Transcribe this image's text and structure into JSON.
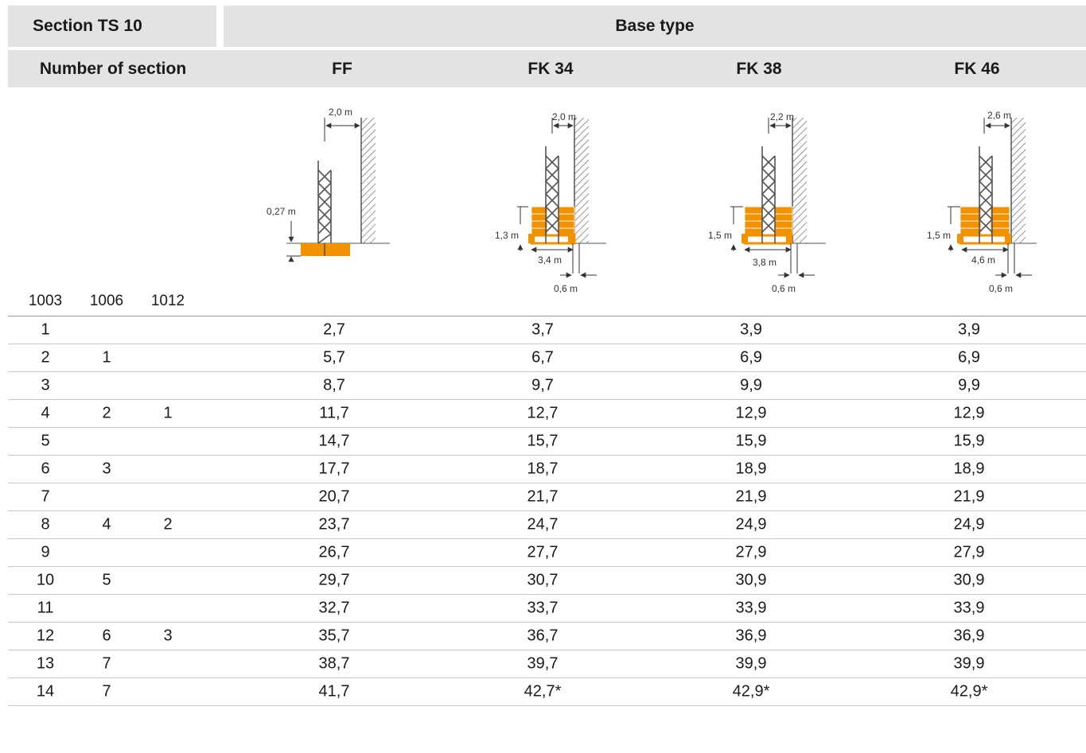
{
  "header": {
    "section_label": "Section TS 10",
    "base_type_label": "Base type",
    "number_label": "Number of section",
    "base_types": [
      "FF",
      "FK 34",
      "FK 38",
      "FK 46"
    ]
  },
  "section_codes": [
    "1003",
    "1006",
    "1012"
  ],
  "diagrams": {
    "ff": {
      "top": "2,0 m",
      "depth": "0,27 m"
    },
    "fk34": {
      "top": "2,0 m",
      "height": "1,3 m",
      "width": "3,4 m",
      "bottom": "0,6 m"
    },
    "fk38": {
      "top": "2,2 m",
      "height": "1,5 m",
      "width": "3,8 m",
      "bottom": "0,6 m"
    },
    "fk46": {
      "top": "2,6 m",
      "height": "1,5 m",
      "width": "4,6 m",
      "bottom": "0,6 m"
    }
  },
  "colors": {
    "header_bg": "#e3e3e3",
    "ballast": "#f39200",
    "steel": "#555555"
  },
  "rows": [
    {
      "c1003": "1",
      "c1006": "",
      "c1012": "",
      "ff": "2,7",
      "fk34": "3,7",
      "fk38": "3,9",
      "fk46": "3,9"
    },
    {
      "c1003": "2",
      "c1006": "1",
      "c1012": "",
      "ff": "5,7",
      "fk34": "6,7",
      "fk38": "6,9",
      "fk46": "6,9"
    },
    {
      "c1003": "3",
      "c1006": "",
      "c1012": "",
      "ff": "8,7",
      "fk34": "9,7",
      "fk38": "9,9",
      "fk46": "9,9"
    },
    {
      "c1003": "4",
      "c1006": "2",
      "c1012": "1",
      "ff": "11,7",
      "fk34": "12,7",
      "fk38": "12,9",
      "fk46": "12,9"
    },
    {
      "c1003": "5",
      "c1006": "",
      "c1012": "",
      "ff": "14,7",
      "fk34": "15,7",
      "fk38": "15,9",
      "fk46": "15,9"
    },
    {
      "c1003": "6",
      "c1006": "3",
      "c1012": "",
      "ff": "17,7",
      "fk34": "18,7",
      "fk38": "18,9",
      "fk46": "18,9"
    },
    {
      "c1003": "7",
      "c1006": "",
      "c1012": "",
      "ff": "20,7",
      "fk34": "21,7",
      "fk38": "21,9",
      "fk46": "21,9"
    },
    {
      "c1003": "8",
      "c1006": "4",
      "c1012": "2",
      "ff": "23,7",
      "fk34": "24,7",
      "fk38": "24,9",
      "fk46": "24,9"
    },
    {
      "c1003": "9",
      "c1006": "",
      "c1012": "",
      "ff": "26,7",
      "fk34": "27,7",
      "fk38": "27,9",
      "fk46": "27,9"
    },
    {
      "c1003": "10",
      "c1006": "5",
      "c1012": "",
      "ff": "29,7",
      "fk34": "30,7",
      "fk38": "30,9",
      "fk46": "30,9"
    },
    {
      "c1003": "11",
      "c1006": "",
      "c1012": "",
      "ff": "32,7",
      "fk34": "33,7",
      "fk38": "33,9",
      "fk46": "33,9"
    },
    {
      "c1003": "12",
      "c1006": "6",
      "c1012": "3",
      "ff": "35,7",
      "fk34": "36,7",
      "fk38": "36,9",
      "fk46": "36,9"
    },
    {
      "c1003": "13",
      "c1006": "7",
      "c1012": "",
      "ff": "38,7",
      "fk34": "39,7",
      "fk38": "39,9",
      "fk46": "39,9"
    },
    {
      "c1003": "14",
      "c1006": "7",
      "c1012": "",
      "ff": "41,7",
      "fk34": "42,7*",
      "fk38": "42,9*",
      "fk46": "42,9*"
    }
  ]
}
